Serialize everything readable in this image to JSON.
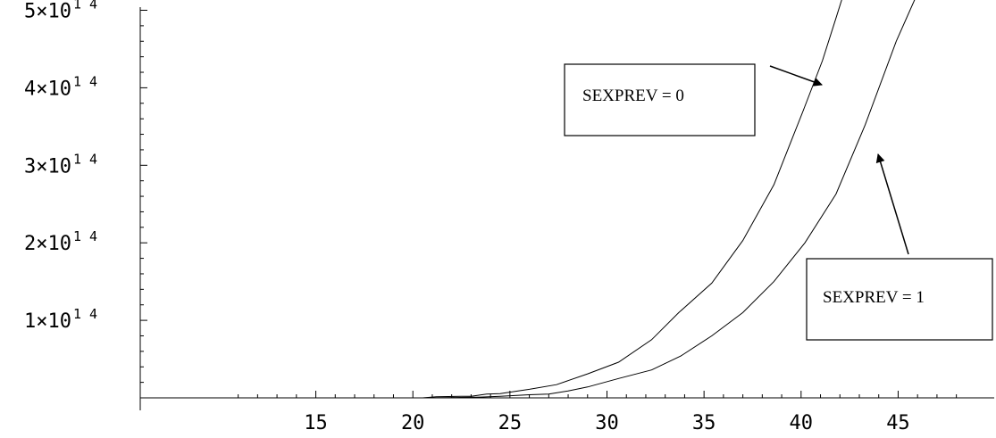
{
  "chart_data": {
    "type": "line",
    "title": "",
    "xlabel": "",
    "ylabel": "",
    "xlim": [
      10,
      48.5
    ],
    "ylim": [
      0,
      530000000000000.0
    ],
    "grid": false,
    "x_ticks": [
      {
        "value": 15,
        "label": "15"
      },
      {
        "value": 20,
        "label": "20"
      },
      {
        "value": 25,
        "label": "25"
      },
      {
        "value": 30,
        "label": "30"
      },
      {
        "value": 35,
        "label": "35"
      },
      {
        "value": 40,
        "label": "40"
      },
      {
        "value": 45,
        "label": "45"
      }
    ],
    "y_ticks": [
      {
        "value": 100000000000000.0,
        "mantissa": "1×10",
        "exponent": "1 4"
      },
      {
        "value": 200000000000000.0,
        "mantissa": "2×10",
        "exponent": "1 4"
      },
      {
        "value": 300000000000000.0,
        "mantissa": "3×10",
        "exponent": "1 4"
      },
      {
        "value": 400000000000000.0,
        "mantissa": "4×10",
        "exponent": "1 4"
      },
      {
        "value": 500000000000000.0,
        "mantissa": "5×10",
        "exponent": "1 4"
      }
    ],
    "series": [
      {
        "id": "sexprev0",
        "x": [
          10.5,
          15,
          20.5,
          21.2,
          22.5,
          23,
          23.8,
          24.5,
          26,
          27.4,
          29,
          30.6,
          32.3,
          33.7,
          35.4,
          37,
          38.6,
          40.1,
          41.1,
          41.8,
          42.3,
          42.6
        ],
        "y": [
          0,
          0,
          0,
          1500000000000.0,
          2000000000000.0,
          2000000000000.0,
          5000000000000.0,
          5500000000000.0,
          11000000000000.0,
          17000000000000.0,
          31000000000000.0,
          46000000000000.0,
          75000000000000.0,
          110000000000000.0,
          148000000000000.0,
          203000000000000.0,
          275000000000000.0,
          370000000000000.0,
          435000000000000.0,
          490000000000000.0,
          530000000000000.0,
          550000000000000.0
        ]
      },
      {
        "id": "sexprev1",
        "x": [
          10.5,
          15,
          20.5,
          22,
          23.5,
          24.5,
          26,
          27,
          28,
          29,
          30.6,
          32.3,
          33.8,
          35.4,
          37,
          38.6,
          40.2,
          41.8,
          43.3,
          44.9,
          46.5
        ],
        "y": [
          0,
          0,
          0,
          500000000000.0,
          1000000000000.0,
          2000000000000.0,
          4000000000000.0,
          5000000000000.0,
          9000000000000.0,
          14000000000000.0,
          25000000000000.0,
          36000000000000.0,
          54000000000000.0,
          80000000000000.0,
          110000000000000.0,
          150000000000000.0,
          200000000000000.0,
          263000000000000.0,
          352000000000000.0,
          460000000000000.0,
          550000000000000.0
        ]
      }
    ],
    "annotations": [
      {
        "id": "sexprev0",
        "text": "SEXPREV = 0"
      },
      {
        "id": "sexprev1",
        "text": "SEXPREV = 1"
      }
    ]
  }
}
